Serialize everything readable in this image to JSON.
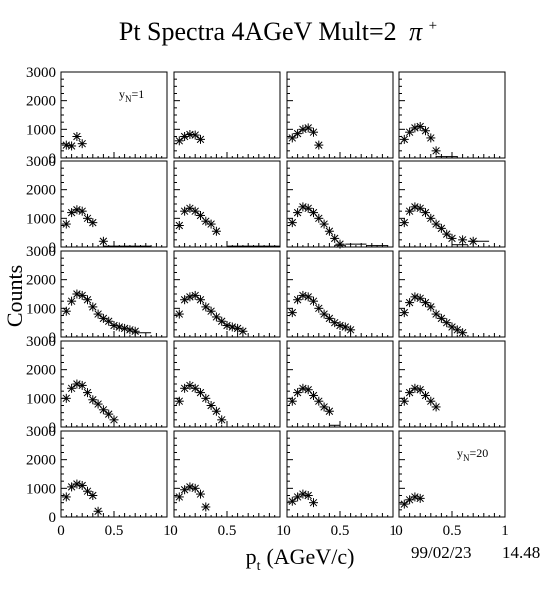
{
  "title": "Pt Spectra 4AGeV Mult=2",
  "title_symbol": "π",
  "title_charge": "+",
  "ylabel": "Counts",
  "xlabel_main": "p",
  "xlabel_sub": "t",
  "xlabel_unit": "(AGeV/c)",
  "date": "99/02/23",
  "time": "14.48",
  "y_tick_labels": [
    "0",
    "1000",
    "2000",
    "3000"
  ],
  "x_tick_labels": [
    "0",
    "0.5",
    "1"
  ],
  "chart_data": {
    "type": "scatter",
    "grid": false,
    "layout": {
      "rows": 5,
      "cols": 4
    },
    "xlim": [
      0,
      1
    ],
    "ylim": [
      0,
      3000
    ],
    "xlabel": "p_t (AGeV/c)",
    "ylabel": "Counts",
    "panel_annotations": [
      {
        "panel": 1,
        "text_main": "y",
        "text_sub": "N",
        "text_value": "=1"
      },
      {
        "panel": 20,
        "text_main": "y",
        "text_sub": "N",
        "text_value": "=20"
      }
    ],
    "panels": [
      {
        "id": 1,
        "points": [
          [
            0.05,
            450
          ],
          [
            0.1,
            420
          ],
          [
            0.15,
            750
          ],
          [
            0.2,
            500
          ]
        ]
      },
      {
        "id": 2,
        "points": [
          [
            0.05,
            600
          ],
          [
            0.1,
            750
          ],
          [
            0.15,
            820
          ],
          [
            0.2,
            800
          ],
          [
            0.25,
            650
          ]
        ]
      },
      {
        "id": 3,
        "points": [
          [
            0.05,
            700
          ],
          [
            0.1,
            850
          ],
          [
            0.15,
            1000
          ],
          [
            0.2,
            1050
          ],
          [
            0.25,
            900
          ],
          [
            0.3,
            450
          ]
        ]
      },
      {
        "id": 4,
        "points": [
          [
            0.05,
            650
          ],
          [
            0.1,
            900
          ],
          [
            0.15,
            1050
          ],
          [
            0.2,
            1100
          ],
          [
            0.25,
            950
          ],
          [
            0.3,
            700
          ],
          [
            0.35,
            250
          ]
        ],
        "hist": [
          [
            0.35,
            0.55,
            50
          ]
        ]
      },
      {
        "id": 5,
        "points": [
          [
            0.05,
            800
          ],
          [
            0.1,
            1200
          ],
          [
            0.15,
            1300
          ],
          [
            0.2,
            1250
          ],
          [
            0.25,
            1000
          ],
          [
            0.3,
            850
          ],
          [
            0.4,
            200
          ]
        ],
        "hist": [
          [
            0.4,
            0.85,
            30
          ]
        ]
      },
      {
        "id": 6,
        "points": [
          [
            0.05,
            750
          ],
          [
            0.1,
            1250
          ],
          [
            0.15,
            1350
          ],
          [
            0.2,
            1250
          ],
          [
            0.25,
            1100
          ],
          [
            0.3,
            900
          ],
          [
            0.35,
            800
          ],
          [
            0.4,
            550
          ]
        ],
        "hist": [
          [
            0.5,
            1.0,
            30
          ]
        ]
      },
      {
        "id": 7,
        "points": [
          [
            0.05,
            850
          ],
          [
            0.1,
            1200
          ],
          [
            0.15,
            1400
          ],
          [
            0.2,
            1350
          ],
          [
            0.25,
            1200
          ],
          [
            0.3,
            1000
          ],
          [
            0.35,
            800
          ],
          [
            0.4,
            550
          ],
          [
            0.45,
            300
          ],
          [
            0.5,
            100
          ]
        ],
        "hist": [
          [
            0.45,
            0.55,
            60
          ],
          [
            0.55,
            0.75,
            100
          ],
          [
            0.75,
            0.95,
            50
          ]
        ]
      },
      {
        "id": 8,
        "points": [
          [
            0.05,
            850
          ],
          [
            0.1,
            1250
          ],
          [
            0.15,
            1400
          ],
          [
            0.2,
            1350
          ],
          [
            0.25,
            1200
          ],
          [
            0.3,
            1000
          ],
          [
            0.35,
            800
          ],
          [
            0.4,
            650
          ],
          [
            0.45,
            450
          ],
          [
            0.5,
            300
          ],
          [
            0.6,
            250
          ],
          [
            0.7,
            200
          ]
        ],
        "hist": [
          [
            0.5,
            0.65,
            80
          ],
          [
            0.65,
            0.85,
            200
          ]
        ]
      },
      {
        "id": 9,
        "points": [
          [
            0.05,
            900
          ],
          [
            0.1,
            1250
          ],
          [
            0.15,
            1500
          ],
          [
            0.2,
            1450
          ],
          [
            0.25,
            1300
          ],
          [
            0.3,
            1050
          ],
          [
            0.35,
            800
          ],
          [
            0.4,
            650
          ],
          [
            0.45,
            550
          ],
          [
            0.5,
            400
          ],
          [
            0.55,
            350
          ],
          [
            0.6,
            300
          ],
          [
            0.65,
            250
          ],
          [
            0.7,
            200
          ]
        ],
        "hist": [
          [
            0.7,
            0.85,
            150
          ]
        ]
      },
      {
        "id": 10,
        "points": [
          [
            0.05,
            800
          ],
          [
            0.1,
            1300
          ],
          [
            0.15,
            1400
          ],
          [
            0.2,
            1450
          ],
          [
            0.25,
            1300
          ],
          [
            0.3,
            1050
          ],
          [
            0.35,
            900
          ],
          [
            0.4,
            700
          ],
          [
            0.45,
            550
          ],
          [
            0.5,
            400
          ],
          [
            0.55,
            350
          ],
          [
            0.6,
            300
          ],
          [
            0.65,
            200
          ]
        ]
      },
      {
        "id": 11,
        "points": [
          [
            0.05,
            850
          ],
          [
            0.1,
            1300
          ],
          [
            0.15,
            1450
          ],
          [
            0.2,
            1400
          ],
          [
            0.25,
            1250
          ],
          [
            0.3,
            1000
          ],
          [
            0.35,
            800
          ],
          [
            0.4,
            650
          ],
          [
            0.45,
            500
          ],
          [
            0.5,
            400
          ],
          [
            0.55,
            350
          ],
          [
            0.6,
            250
          ]
        ]
      },
      {
        "id": 12,
        "points": [
          [
            0.05,
            850
          ],
          [
            0.1,
            1200
          ],
          [
            0.15,
            1400
          ],
          [
            0.2,
            1350
          ],
          [
            0.25,
            1200
          ],
          [
            0.3,
            1050
          ],
          [
            0.35,
            800
          ],
          [
            0.4,
            650
          ],
          [
            0.45,
            500
          ],
          [
            0.5,
            350
          ],
          [
            0.55,
            250
          ],
          [
            0.6,
            150
          ]
        ]
      },
      {
        "id": 13,
        "points": [
          [
            0.05,
            1000
          ],
          [
            0.1,
            1350
          ],
          [
            0.15,
            1500
          ],
          [
            0.2,
            1450
          ],
          [
            0.25,
            1200
          ],
          [
            0.3,
            950
          ],
          [
            0.35,
            800
          ],
          [
            0.4,
            600
          ],
          [
            0.45,
            450
          ],
          [
            0.5,
            250
          ]
        ]
      },
      {
        "id": 14,
        "points": [
          [
            0.05,
            900
          ],
          [
            0.1,
            1350
          ],
          [
            0.15,
            1450
          ],
          [
            0.2,
            1350
          ],
          [
            0.25,
            1200
          ],
          [
            0.3,
            1000
          ],
          [
            0.35,
            750
          ],
          [
            0.4,
            550
          ],
          [
            0.45,
            250
          ]
        ]
      },
      {
        "id": 15,
        "points": [
          [
            0.05,
            900
          ],
          [
            0.1,
            1200
          ],
          [
            0.15,
            1350
          ],
          [
            0.2,
            1300
          ],
          [
            0.25,
            1100
          ],
          [
            0.3,
            900
          ],
          [
            0.35,
            700
          ],
          [
            0.4,
            550
          ]
        ],
        "hist": [
          [
            0.4,
            0.5,
            60
          ]
        ]
      },
      {
        "id": 16,
        "points": [
          [
            0.05,
            900
          ],
          [
            0.1,
            1200
          ],
          [
            0.15,
            1350
          ],
          [
            0.2,
            1300
          ],
          [
            0.25,
            1100
          ],
          [
            0.3,
            900
          ],
          [
            0.35,
            700
          ]
        ]
      },
      {
        "id": 17,
        "points": [
          [
            0.05,
            700
          ],
          [
            0.1,
            1050
          ],
          [
            0.15,
            1150
          ],
          [
            0.2,
            1100
          ],
          [
            0.25,
            900
          ],
          [
            0.3,
            750
          ],
          [
            0.35,
            200
          ]
        ]
      },
      {
        "id": 18,
        "points": [
          [
            0.05,
            700
          ],
          [
            0.1,
            950
          ],
          [
            0.15,
            1050
          ],
          [
            0.2,
            1000
          ],
          [
            0.25,
            800
          ],
          [
            0.3,
            350
          ]
        ]
      },
      {
        "id": 19,
        "points": [
          [
            0.05,
            550
          ],
          [
            0.1,
            700
          ],
          [
            0.15,
            800
          ],
          [
            0.2,
            750
          ],
          [
            0.25,
            500
          ]
        ]
      },
      {
        "id": 20,
        "points": [
          [
            0.05,
            450
          ],
          [
            0.1,
            600
          ],
          [
            0.15,
            700
          ],
          [
            0.2,
            650
          ]
        ]
      }
    ]
  }
}
